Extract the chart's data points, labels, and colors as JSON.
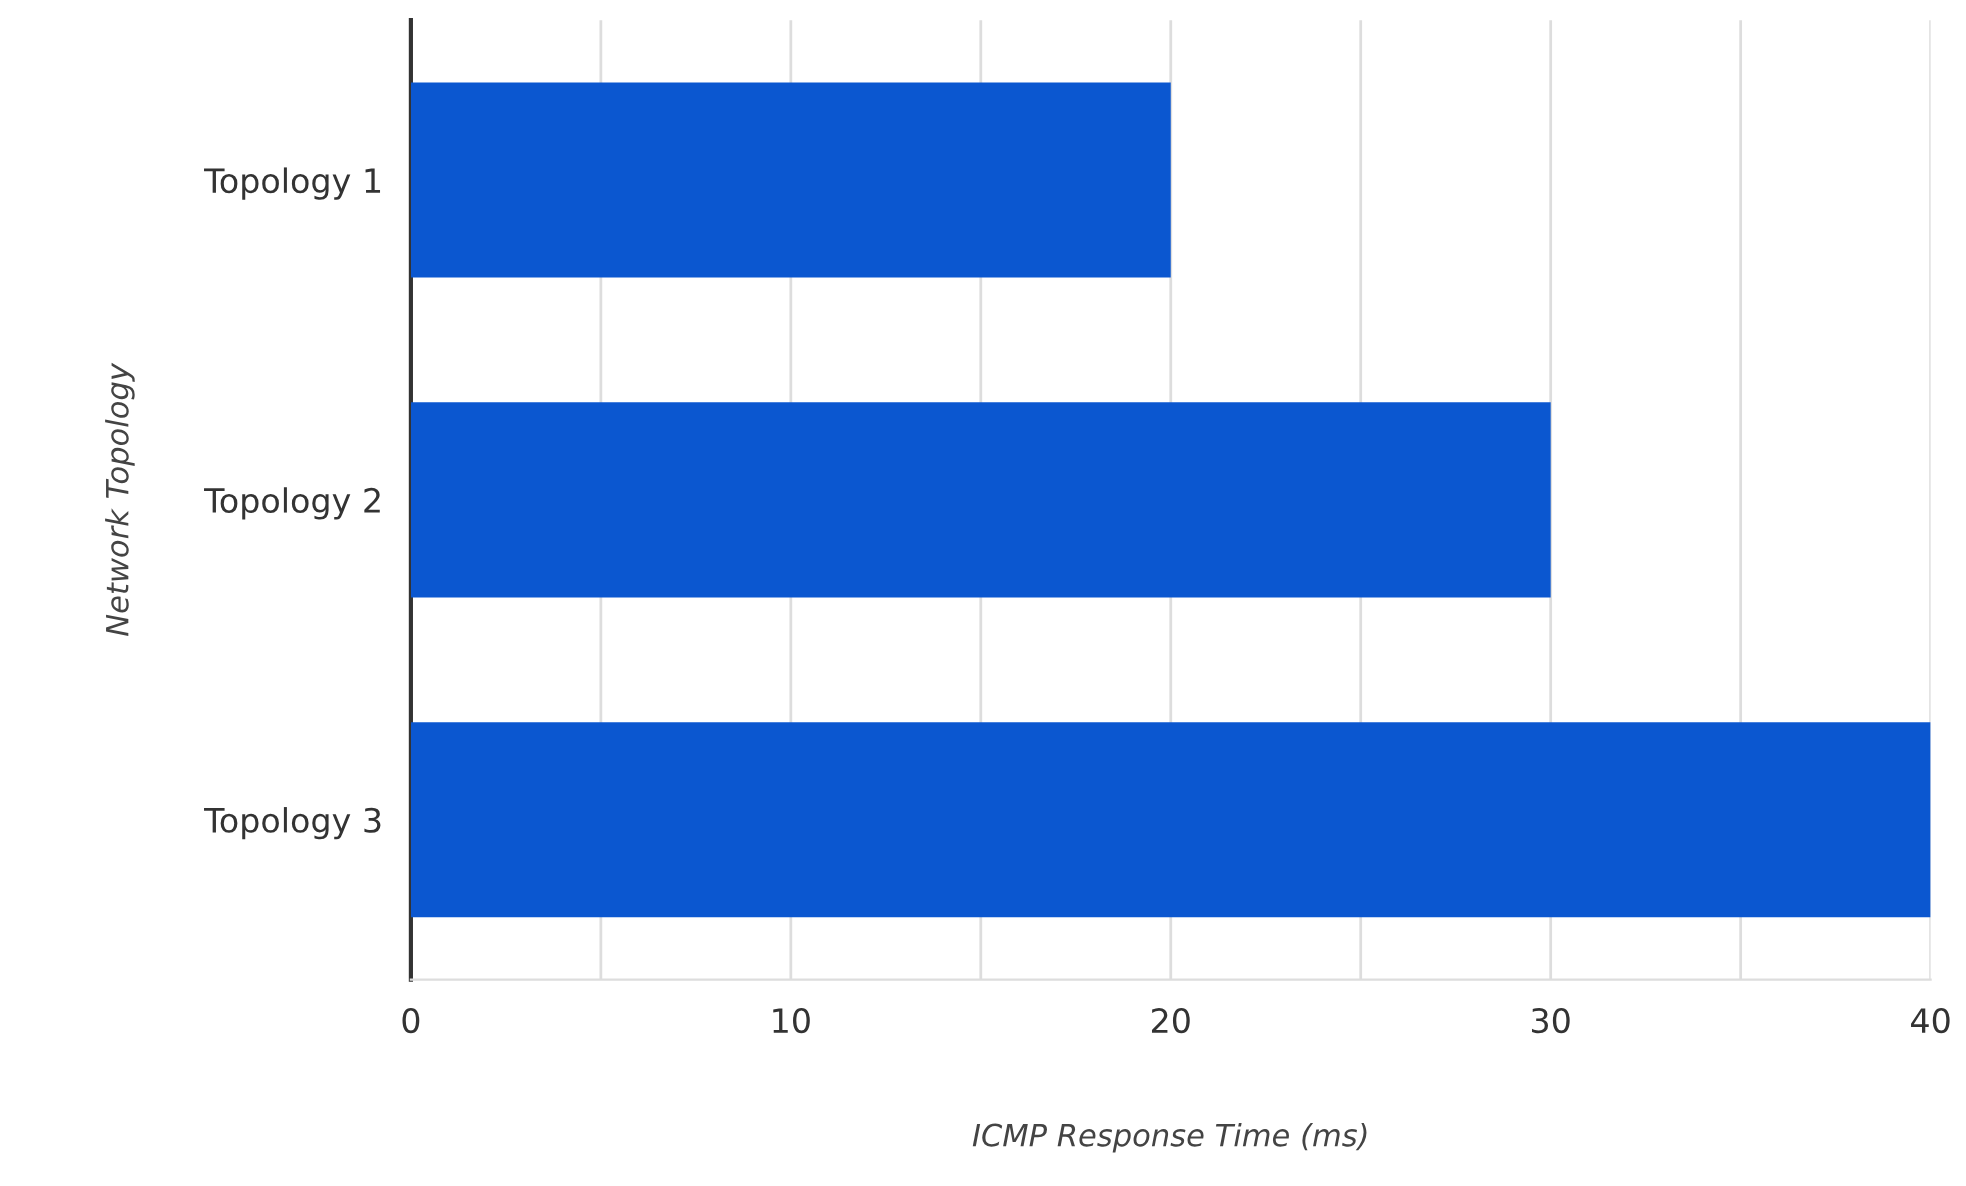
{
  "chart_data": {
    "type": "bar",
    "orientation": "horizontal",
    "xlabel": "ICMP Response Time (ms)",
    "ylabel": "Network Topology",
    "categories": [
      "Topology 1",
      "Topology 2",
      "Topology 3"
    ],
    "values": [
      20,
      30,
      40
    ],
    "color": "#0b57d0",
    "xlim": [
      0,
      40
    ],
    "xticks": [
      0,
      {
        "value": 5,
        "label": null
      },
      10,
      {
        "value": 15,
        "label": null
      },
      20,
      {
        "value": 25,
        "label": null
      },
      30,
      {
        "value": 35,
        "label": null
      },
      40
    ],
    "grid": "x",
    "legend": false
  }
}
